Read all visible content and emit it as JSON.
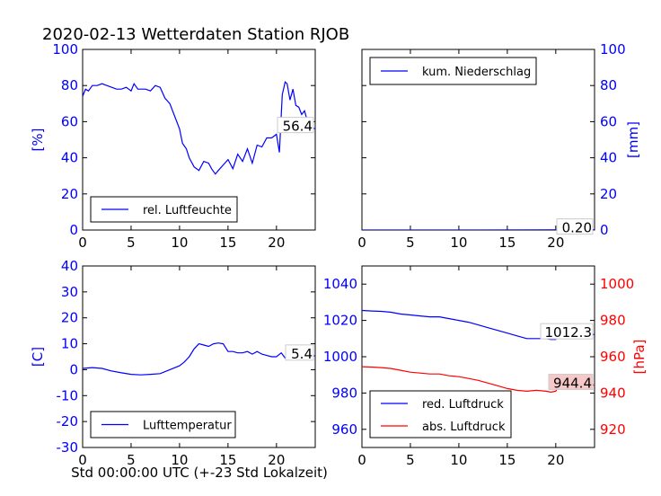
{
  "figure": {
    "title": "2020-02-13 Wetterdaten Station RJOB",
    "xlabel": "Std 00:00:00 UTC (+-23 Std Lokalzeit)"
  },
  "colors": {
    "blue": "#0000ff",
    "red": "#ff0000",
    "black": "#000000",
    "annot_bg_red": "#f7c8c8"
  },
  "chart_data": [
    {
      "id": "humidity",
      "type": "line",
      "xlim": [
        0,
        24
      ],
      "ylim": [
        0,
        100
      ],
      "xticks": [
        0,
        5,
        10,
        15,
        20
      ],
      "yticks": [
        0,
        20,
        40,
        60,
        80,
        100
      ],
      "ylabel": "[%]",
      "ylabel_side": "left",
      "legend": {
        "placement": "lower-left"
      },
      "series": [
        {
          "name": "rel. Luftfeuchte",
          "color": "#0000ff",
          "x": [
            0,
            0.3,
            0.6,
            1,
            1.5,
            2,
            2.5,
            3,
            3.5,
            4,
            4.5,
            5,
            5.3,
            5.7,
            6,
            6.5,
            7,
            7.5,
            8,
            8.5,
            9,
            9.5,
            10,
            10.3,
            10.7,
            11,
            11.5,
            12,
            12.5,
            13,
            13.3,
            13.7,
            14,
            14.5,
            15,
            15.5,
            16,
            16.5,
            17,
            17.5,
            18,
            18.5,
            19,
            19.5,
            20,
            20.3,
            20.6,
            20.9,
            21.1,
            21.4,
            21.7,
            22,
            22.3,
            22.6,
            22.9,
            23.2,
            23.5,
            23.8,
            24
          ],
          "y": [
            74,
            78,
            77,
            80,
            80,
            81,
            80,
            79,
            78,
            78,
            79,
            77,
            81,
            78,
            78,
            78,
            77,
            80,
            79,
            73,
            70,
            63,
            56,
            48,
            45,
            40,
            35,
            33,
            38,
            37,
            34,
            31,
            33,
            36,
            39,
            34,
            42,
            38,
            45,
            37,
            47,
            46,
            51,
            51,
            53,
            43,
            75,
            82,
            81,
            72,
            78,
            69,
            68,
            64,
            66,
            60,
            57,
            56,
            56.4
          ]
        }
      ],
      "annotation": {
        "text": "56.4",
        "x": 24,
        "y": 56.4
      }
    },
    {
      "id": "precip",
      "type": "line",
      "xlim": [
        0,
        24
      ],
      "ylim": [
        0,
        100
      ],
      "xticks": [
        0,
        5,
        10,
        15,
        20
      ],
      "yticks": [
        0,
        20,
        40,
        60,
        80,
        100
      ],
      "ylabel": "[mm]",
      "ylabel_side": "right",
      "legend": {
        "placement": "upper-left"
      },
      "series": [
        {
          "name": "kum. Niederschlag",
          "color": "#0000ff",
          "x": [
            0,
            6,
            12,
            18,
            24
          ],
          "y": [
            0,
            0,
            0,
            0.1,
            0.2
          ]
        }
      ],
      "annotation": {
        "text": "0.20",
        "x": 24,
        "y": 0.2
      }
    },
    {
      "id": "temperature",
      "type": "line",
      "xlim": [
        0,
        24
      ],
      "ylim": [
        -30,
        40
      ],
      "xticks": [
        0,
        5,
        10,
        15,
        20
      ],
      "yticks": [
        -30,
        -20,
        -10,
        0,
        10,
        20,
        30,
        40
      ],
      "ylabel": "[C]",
      "ylabel_side": "left",
      "legend": {
        "placement": "lower-left"
      },
      "series": [
        {
          "name": "Lufttemperatur",
          "color": "#0000ff",
          "x": [
            0,
            1,
            2,
            3,
            4,
            5,
            6,
            7,
            8,
            9,
            10,
            10.5,
            11,
            11.5,
            12,
            12.5,
            13,
            13.5,
            14,
            14.5,
            15,
            15.5,
            16,
            16.5,
            17,
            17.5,
            18,
            18.5,
            19,
            19.5,
            20,
            20.5,
            21,
            21.5,
            22,
            22.5,
            23,
            23.5,
            24
          ],
          "y": [
            0.5,
            0.8,
            0.5,
            -0.5,
            -1.2,
            -1.8,
            -2,
            -1.8,
            -1.5,
            0,
            1.5,
            3,
            5,
            8,
            10,
            9.5,
            9,
            10,
            10.3,
            10,
            7,
            7,
            6.5,
            6.5,
            7,
            6,
            7,
            6,
            5.5,
            5,
            5,
            6.5,
            4,
            4.5,
            4,
            4.5,
            4.5,
            5,
            5.4
          ]
        }
      ],
      "annotation": {
        "text": "5.4",
        "x": 24,
        "y": 5.4
      }
    },
    {
      "id": "pressure",
      "type": "line",
      "xlim": [
        0,
        24
      ],
      "ylim": [
        950,
        1050
      ],
      "xticks": [
        0,
        5,
        10,
        15,
        20
      ],
      "yticks": [
        960,
        980,
        1000,
        1020,
        1040
      ],
      "y2lim": [
        910,
        1010
      ],
      "y2ticks": [
        920,
        940,
        960,
        980,
        1000
      ],
      "y2label": "[hPa]",
      "legend": {
        "placement": "lower-left"
      },
      "series": [
        {
          "name": "red. Luftdruck",
          "color": "#0000ff",
          "axis": "left",
          "x": [
            0,
            1,
            2,
            3,
            4,
            5,
            6,
            7,
            8,
            9,
            10,
            11,
            12,
            13,
            14,
            15,
            16,
            17,
            18,
            19,
            19.5,
            20,
            20.3,
            20.6,
            21,
            22,
            23,
            24
          ],
          "y": [
            1025.5,
            1025.2,
            1025,
            1024.5,
            1023.5,
            1023,
            1022.5,
            1022,
            1022,
            1021,
            1020,
            1019,
            1017.5,
            1016,
            1014.5,
            1013,
            1011.5,
            1010,
            1010,
            1010,
            1009.5,
            1009.5,
            1012.5,
            1013,
            1012.5,
            1012.3,
            1012.3,
            1012.3
          ]
        },
        {
          "name": "abs. Luftdruck",
          "color": "#ff0000",
          "axis": "right",
          "x": [
            0,
            1,
            2,
            3,
            4,
            5,
            6,
            7,
            8,
            9,
            10,
            11,
            12,
            13,
            14,
            15,
            16,
            17,
            18,
            19,
            19.5,
            20,
            20.3,
            20.6,
            21,
            22,
            23,
            24
          ],
          "y": [
            954.5,
            954.3,
            954,
            953.5,
            952.5,
            951.5,
            951,
            950.5,
            950.5,
            949.5,
            949,
            948,
            947,
            945.5,
            944,
            942.5,
            941.5,
            941,
            941.5,
            941,
            940.5,
            941,
            944,
            944.5,
            944.2,
            944.3,
            944.4,
            944.4
          ]
        }
      ],
      "annotation_left": {
        "text": "1012.3",
        "x": 24,
        "y": 1012.3
      },
      "annotation_right": {
        "text": "944.4",
        "x": 24,
        "y": 944.4
      }
    }
  ]
}
